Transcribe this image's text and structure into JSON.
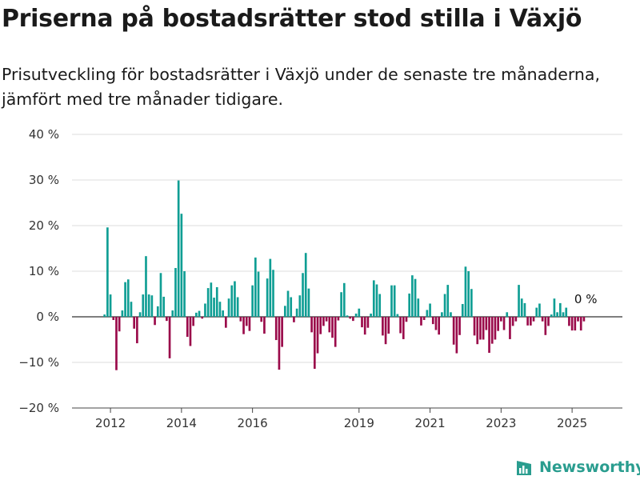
{
  "title": "Priserna på bostadsrätter stod stilla i Växjö",
  "subtitle": "Prisutveckling för bostadsrätter i Växjö under de senaste tre månaderna, jämfört med tre månader tidigare.",
  "brand": {
    "name": "Newsworthy",
    "icon": "bar-chart-logo-icon"
  },
  "colors": {
    "positive": "#0f9e94",
    "negative": "#9a0a4a",
    "grid": "#dddddd",
    "axis": "#444444"
  },
  "chart_data": {
    "type": "bar",
    "x_start": "2011-11",
    "x_end": "2025-05",
    "xlim": [
      "2010-12",
      "2026-06"
    ],
    "x_ticks": [
      {
        "label": "2012",
        "date": "2012-01"
      },
      {
        "label": "2014",
        "date": "2014-01"
      },
      {
        "label": "2016",
        "date": "2016-01"
      },
      {
        "label": "2019",
        "date": "2019-01"
      },
      {
        "label": "2021",
        "date": "2021-01"
      },
      {
        "label": "2023",
        "date": "2023-01"
      },
      {
        "label": "2025",
        "date": "2025-01"
      }
    ],
    "ylim": [
      -20,
      40
    ],
    "y_ticks": [
      {
        "label": "40 %",
        "value": 40
      },
      {
        "label": "30 %",
        "value": 30
      },
      {
        "label": "20 %",
        "value": 20
      },
      {
        "label": "10 %",
        "value": 10
      },
      {
        "label": "0 %",
        "value": 0
      },
      {
        "label": "−10 %",
        "value": -10
      },
      {
        "label": "−20 %",
        "value": -20
      }
    ],
    "grid": true,
    "annotation": "0 %",
    "values": [
      0.5,
      19.6,
      4.9,
      -0.7,
      -11.7,
      -3.2,
      1.4,
      7.6,
      8.2,
      3.3,
      -2.6,
      -5.8,
      1.0,
      4.9,
      13.3,
      4.9,
      4.7,
      -1.8,
      2.3,
      9.6,
      4.4,
      -0.9,
      -9.1,
      1.4,
      10.7,
      29.9,
      22.6,
      10.0,
      -4.4,
      -6.4,
      -2.0,
      0.9,
      1.3,
      -0.4,
      2.9,
      6.3,
      7.5,
      4.2,
      6.5,
      3.3,
      1.4,
      -2.4,
      4.0,
      6.9,
      7.8,
      4.3,
      -1.0,
      -3.8,
      -2.0,
      -3.1,
      6.9,
      13.0,
      9.9,
      -1.1,
      -3.7,
      8.4,
      12.7,
      10.3,
      -5.1,
      -11.6,
      -6.6,
      2.4,
      5.7,
      4.3,
      -1.2,
      1.8,
      4.7,
      9.6,
      14.0,
      6.2,
      -3.4,
      -11.4,
      -8.0,
      -3.8,
      -2.0,
      -1.0,
      -3.4,
      -4.6,
      -6.6,
      -0.8,
      5.4,
      7.4,
      0.3,
      -0.4,
      -0.9,
      0.7,
      1.8,
      -2.3,
      -3.9,
      -2.4,
      0.7,
      8.0,
      7.1,
      5.0,
      -4.1,
      -6.0,
      -3.7,
      6.9,
      6.9,
      0.6,
      -3.6,
      -4.9,
      -1.1,
      5.1,
      9.1,
      8.3,
      4.0,
      -1.9,
      -0.7,
      1.5,
      2.9,
      -1.6,
      -2.9,
      -3.9,
      1.0,
      5.0,
      7.0,
      1.0,
      -6.1,
      -8.0,
      -4.0,
      2.8,
      11.0,
      10.0,
      6.1,
      -4.1,
      -6.0,
      -5.0,
      -5.0,
      -2.9,
      -7.9,
      -5.9,
      -5.0,
      -3.1,
      -1.0,
      -2.9,
      1.0,
      -4.9,
      -2.0,
      -1.0,
      7.0,
      4.0,
      3.0,
      -1.9,
      -1.9,
      -1.0,
      2.0,
      2.9,
      -1.0,
      -4.0,
      -2.0,
      0.5,
      4.0,
      1.0,
      3.0,
      1.0,
      2.0,
      -2.0,
      -3.0,
      -3.0,
      -1.0,
      -3.0,
      -1.0
    ]
  }
}
